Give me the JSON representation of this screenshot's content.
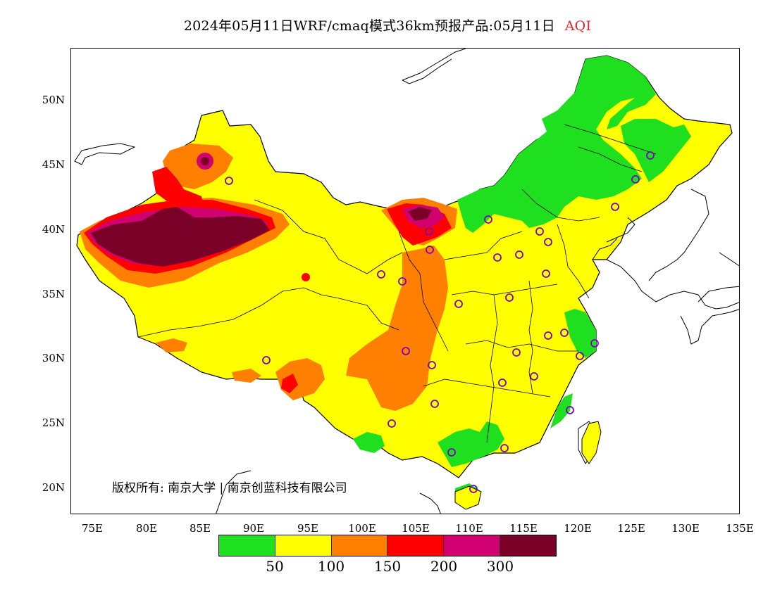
{
  "title": {
    "main": "2024年05月11日WRF/cmaq模式36km预报产品:05月11日",
    "variable": "AQI"
  },
  "map": {
    "x_ticks": [
      "75E",
      "80E",
      "85E",
      "90E",
      "95E",
      "100E",
      "105E",
      "110E",
      "115E",
      "120E",
      "125E",
      "130E",
      "135E"
    ],
    "y_ticks": [
      "50N",
      "45N",
      "40N",
      "35N",
      "30N",
      "25N",
      "20N"
    ],
    "copyright": "版权所有: 南京大学 | 南京创蓝科技有限公司",
    "colors": {
      "green": "#1ee01e",
      "yellow": "#ffff00",
      "orange": "#ff8000",
      "red": "#ff0000",
      "magenta": "#d00070",
      "maroon": "#7a0028",
      "station_marker": "#8000c0",
      "border": "#000000"
    }
  },
  "legend": {
    "colors": [
      "#1ee01e",
      "#ffff00",
      "#ff8000",
      "#ff0000",
      "#d00070",
      "#7a0028"
    ],
    "labels": [
      "50",
      "100",
      "150",
      "200",
      "300"
    ]
  }
}
